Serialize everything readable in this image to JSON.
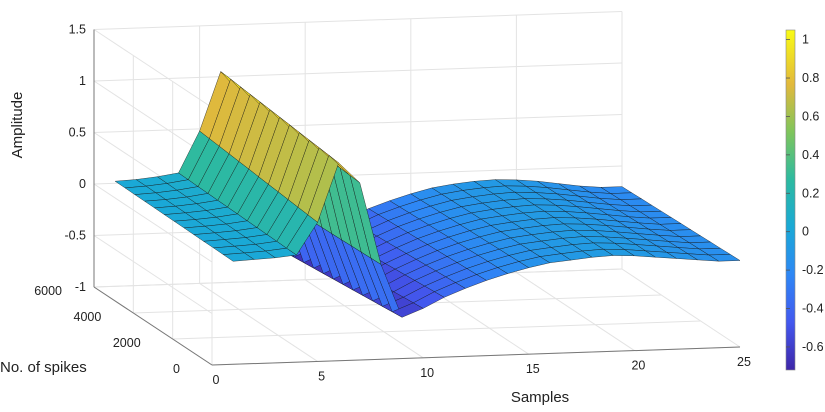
{
  "chart_data": {
    "type": "surface",
    "title": "",
    "xlabel": "Samples",
    "ylabel": "No. of spikes",
    "zlabel": "Amplitude",
    "xlim": [
      0,
      25
    ],
    "ylim": [
      0,
      6000
    ],
    "zlim": [
      -1,
      1.5
    ],
    "x_ticks": [
      "0",
      "5",
      "10",
      "15",
      "20",
      "25"
    ],
    "y_ticks": [
      "0",
      "2000",
      "4000",
      "6000"
    ],
    "z_ticks": [
      "-1",
      "-0.5",
      "0",
      "0.5",
      "1",
      "1.5"
    ],
    "grid": true,
    "colormap": "parula",
    "colorbar": {
      "range": [
        -0.72,
        1.05
      ],
      "ticks": [
        "1",
        "0.8",
        "0.6",
        "0.4",
        "0.2",
        "0",
        "-0.2",
        "-0.4",
        "-0.6"
      ],
      "position": "right"
    },
    "samples": [
      1,
      2,
      3,
      4,
      5,
      6,
      7,
      8,
      9,
      10,
      11,
      12,
      13,
      14,
      15,
      16,
      17,
      18,
      19,
      20,
      21,
      22,
      23,
      24,
      25
    ],
    "spike_counts": [
      0,
      500,
      1000,
      1500,
      2000,
      2500,
      3000,
      3500,
      4000,
      4500,
      5000,
      5500,
      6000
    ],
    "waveform_top": [
      0.02,
      0.03,
      0.05,
      0.08,
      0.48,
      1.05,
      0.82,
      -0.12,
      -0.72,
      -0.63,
      -0.52,
      -0.42,
      -0.33,
      -0.26,
      -0.2,
      -0.15,
      -0.12,
      -0.1,
      -0.09,
      -0.1,
      -0.12,
      -0.15,
      -0.18,
      -0.2,
      -0.2
    ],
    "waveform_bottom": [
      0.0,
      0.01,
      0.02,
      0.04,
      0.35,
      0.92,
      0.72,
      -0.08,
      -0.6,
      -0.52,
      -0.42,
      -0.34,
      -0.27,
      -0.21,
      -0.16,
      -0.12,
      -0.1,
      -0.08,
      -0.07,
      -0.08,
      -0.1,
      -0.12,
      -0.14,
      -0.16,
      -0.16
    ]
  }
}
